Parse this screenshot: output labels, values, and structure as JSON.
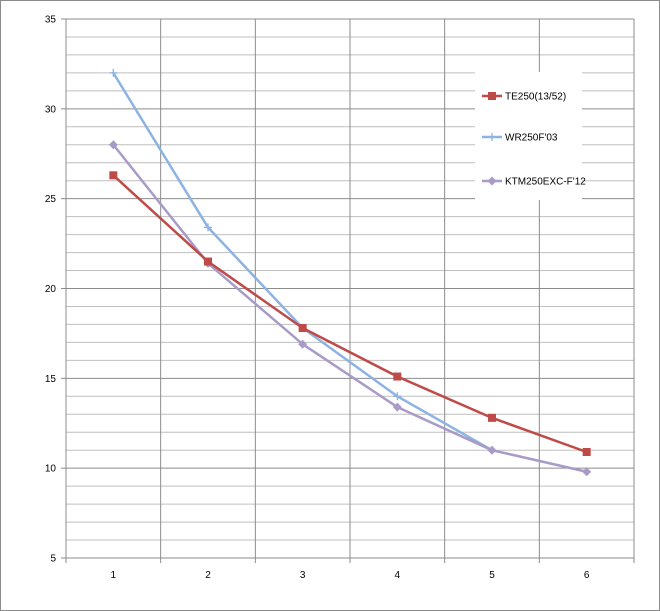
{
  "chart_data": {
    "type": "line",
    "title": "",
    "xlabel": "",
    "ylabel": "",
    "x": [
      1,
      2,
      3,
      4,
      5,
      6
    ],
    "categories": [
      "1",
      "2",
      "3",
      "4",
      "5",
      "6"
    ],
    "ylim": [
      5,
      35
    ],
    "yticks": [
      "5",
      "10",
      "15",
      "20",
      "25",
      "30",
      "35"
    ],
    "grid": true,
    "legend_position": "right",
    "series": [
      {
        "name": "TE250(13/52)",
        "color": "#be4b48",
        "marker": "square",
        "values": [
          26.3,
          21.5,
          17.8,
          15.1,
          12.8,
          10.9
        ]
      },
      {
        "name": "WR250F'03",
        "color": "#8db3e2",
        "marker": "plus",
        "values": [
          32.0,
          23.4,
          17.8,
          14.0,
          11.0,
          null
        ]
      },
      {
        "name": "KTM250EXC-F'12",
        "color": "#a99bc8",
        "marker": "diamond",
        "values": [
          28.0,
          21.4,
          16.9,
          13.4,
          11.0,
          9.8
        ]
      }
    ]
  }
}
